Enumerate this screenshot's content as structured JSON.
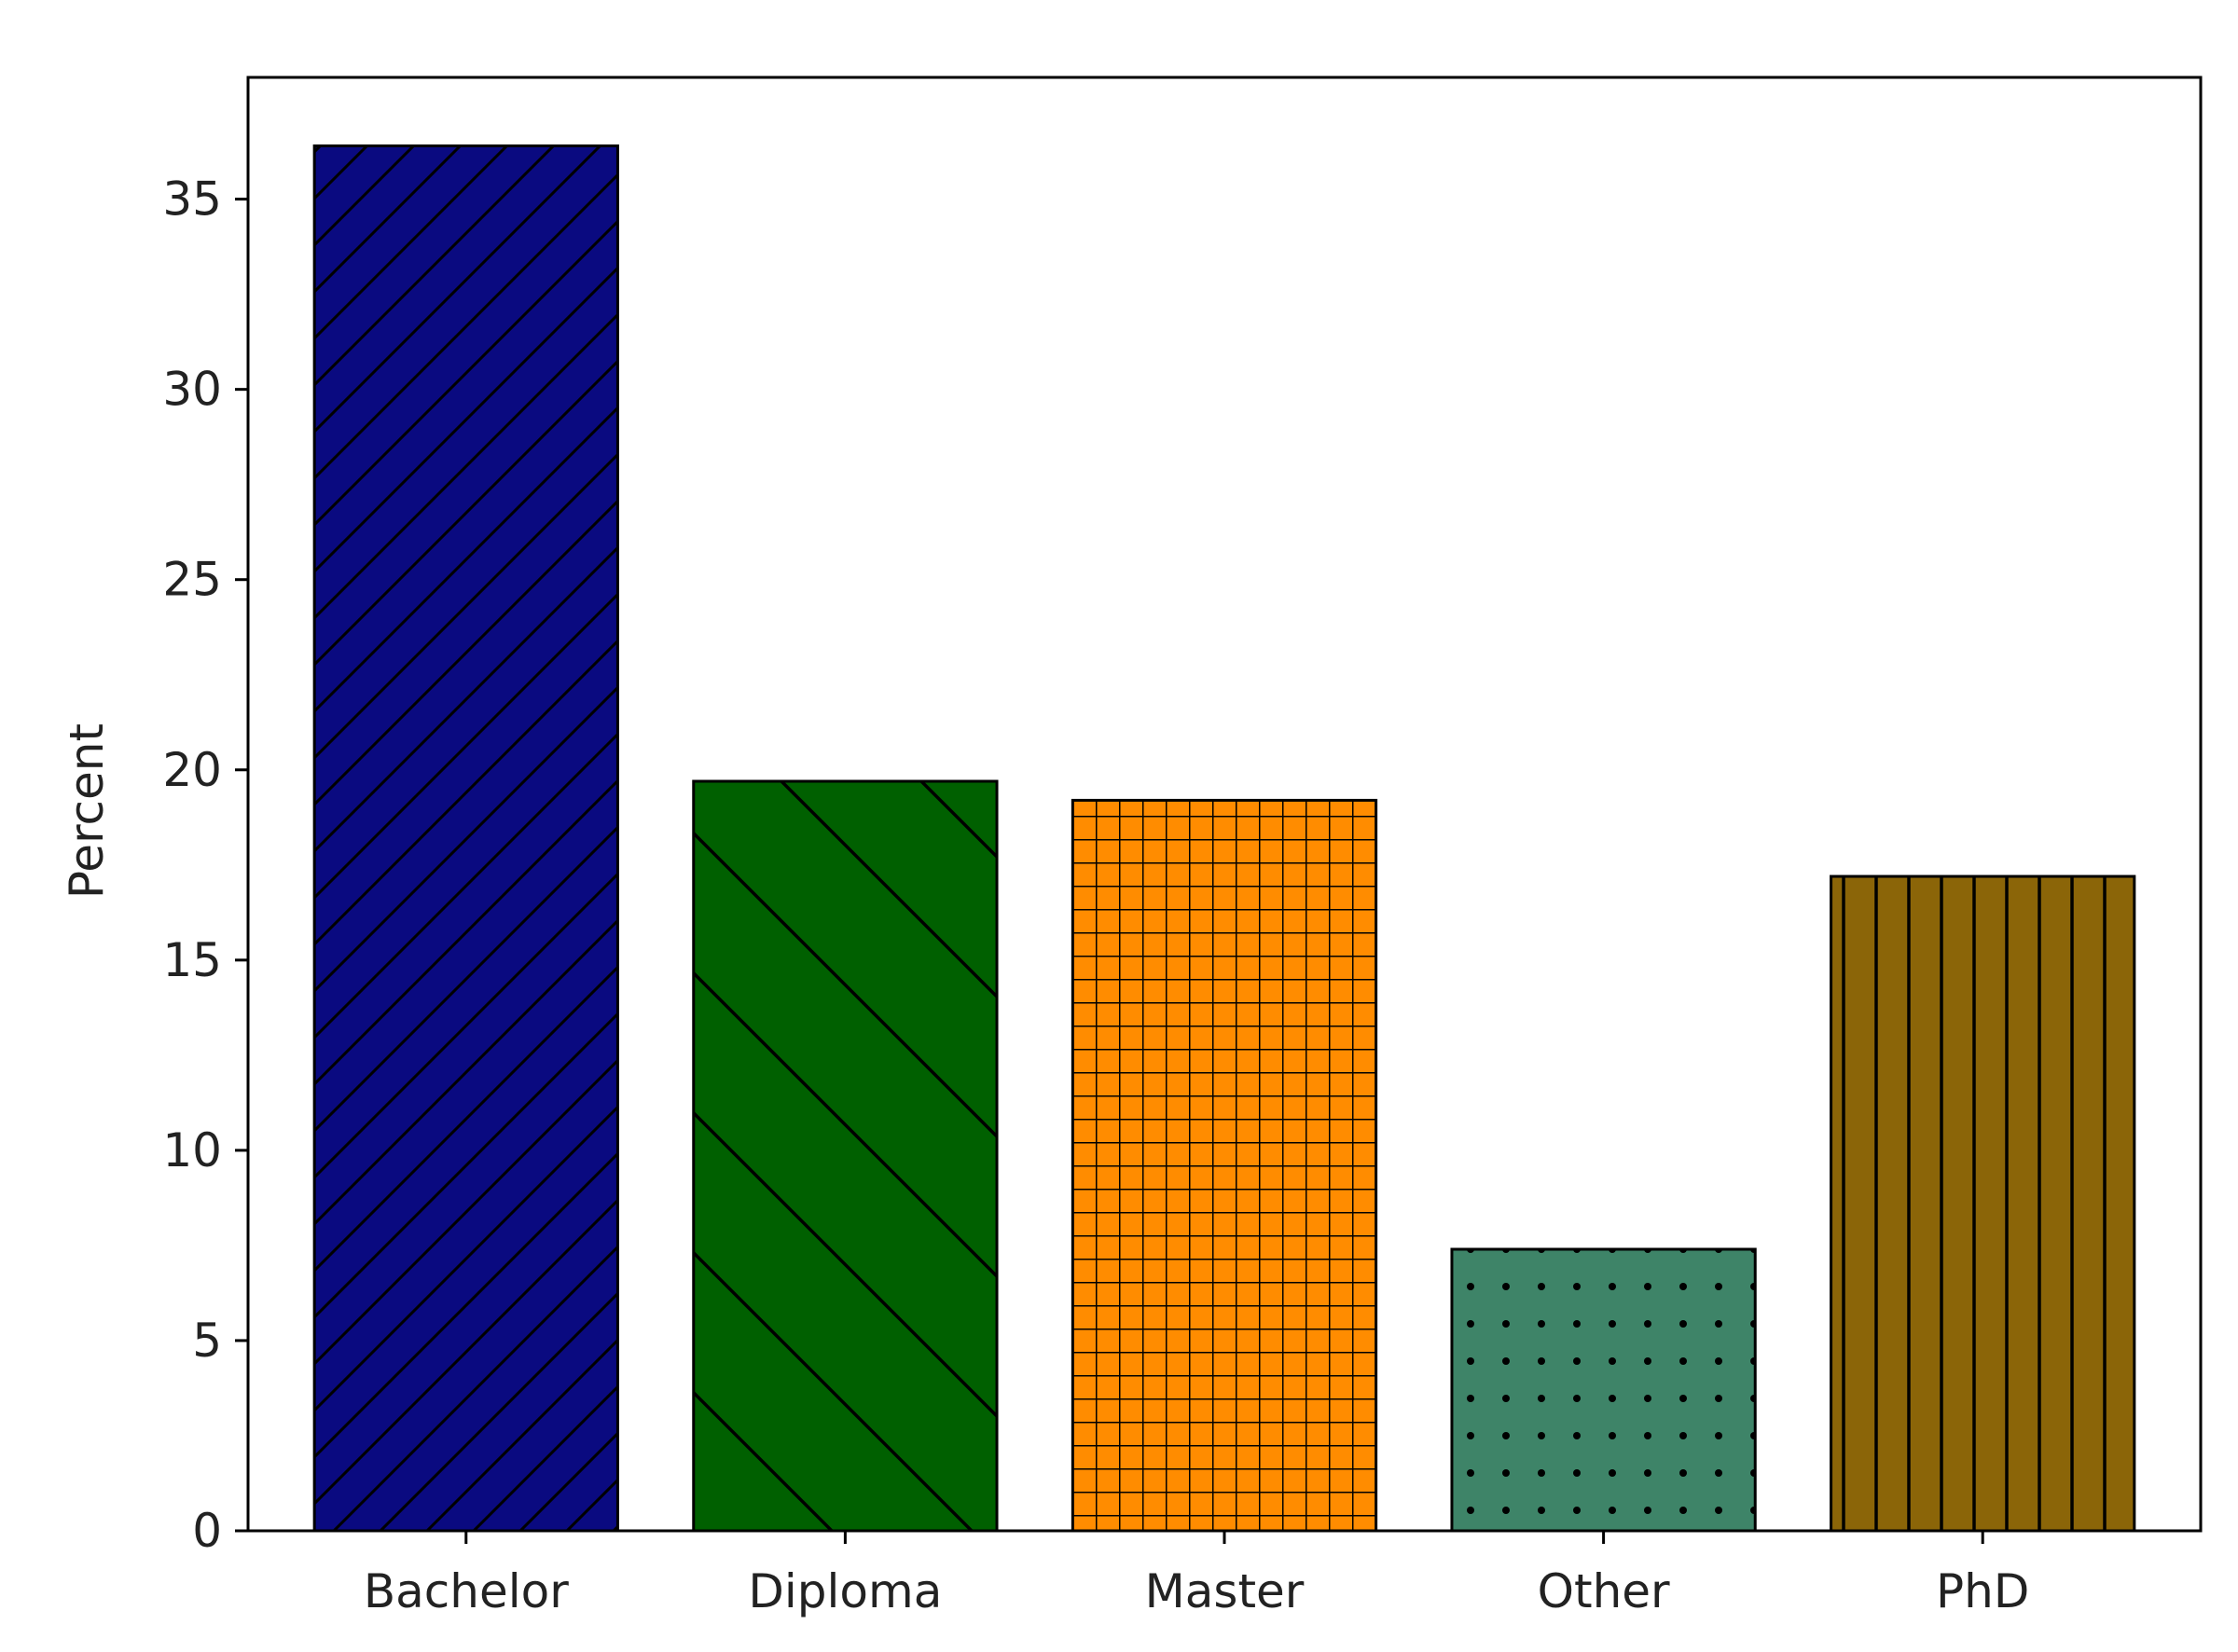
{
  "chart_data": {
    "type": "bar",
    "title": "",
    "xlabel": "",
    "ylabel": "Percent",
    "categories": [
      "Bachelor",
      "Diploma",
      "Master",
      "Other",
      "PhD"
    ],
    "values": [
      36.4,
      19.7,
      19.2,
      7.4,
      17.2
    ],
    "ylim": [
      0,
      38.2
    ],
    "yticks": [
      0,
      5,
      10,
      15,
      20,
      25,
      30,
      35
    ],
    "grid": false,
    "legend": "none",
    "bar_colors": [
      "#0a0a80",
      "#006000",
      "#ff8c00",
      "#3e8468",
      "#8b6508"
    ],
    "bar_hatches": [
      "diagonal-forward",
      "diagonal-backward",
      "grid",
      "dots",
      "vertical"
    ]
  }
}
